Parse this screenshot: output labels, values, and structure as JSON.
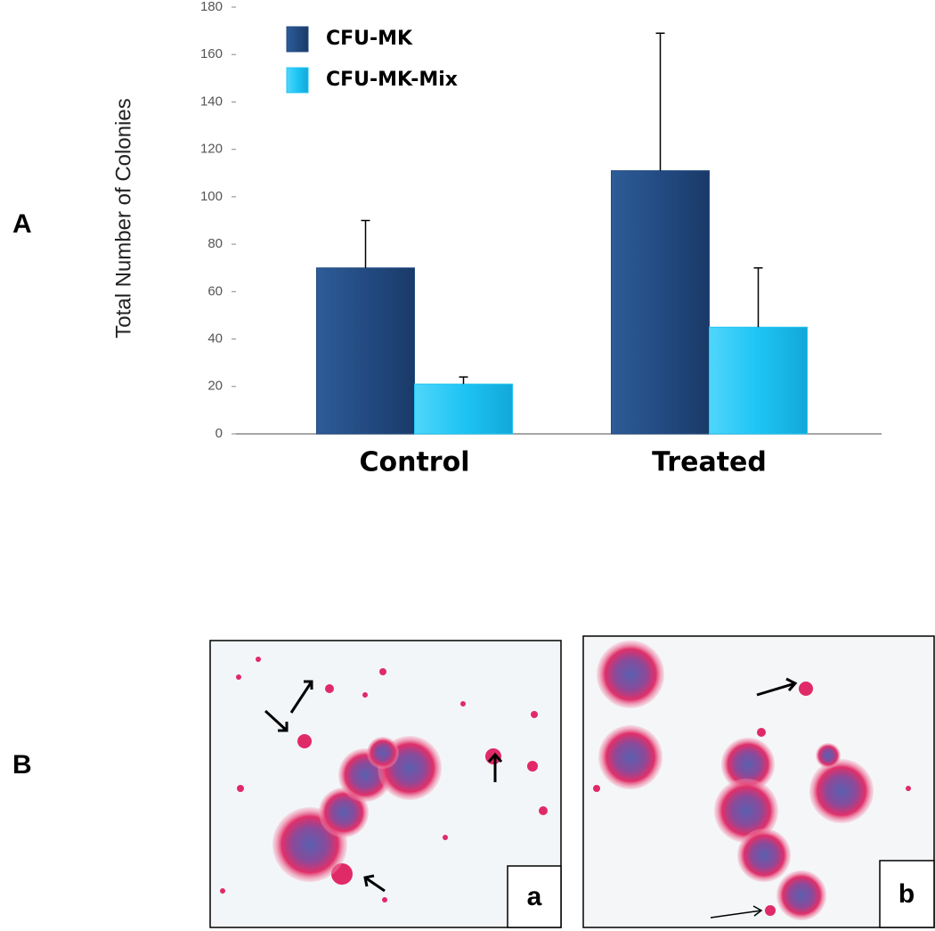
{
  "chart_data": {
    "type": "bar",
    "ylabel": "Total Number of Colonies",
    "categories": [
      "Control",
      "Treated"
    ],
    "series": [
      {
        "name": "CFU-MK",
        "color": "#234b82",
        "values": [
          70,
          111
        ],
        "errors": [
          20,
          58
        ]
      },
      {
        "name": "CFU-MK-Mix",
        "color": "#1ec4f4",
        "values": [
          21,
          45
        ],
        "errors": [
          3,
          25
        ]
      }
    ],
    "ylim": [
      0,
      180
    ],
    "yticks": [
      0,
      20,
      40,
      60,
      80,
      100,
      120,
      140,
      160,
      180
    ],
    "legend": "upper left"
  },
  "panel_labels": [
    "A",
    "B"
  ],
  "micrographs": [
    {
      "label": "a"
    },
    {
      "label": "b"
    }
  ]
}
